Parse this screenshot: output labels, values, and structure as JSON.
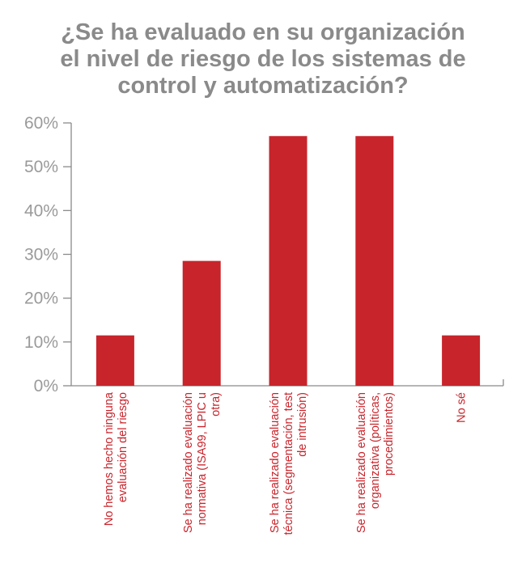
{
  "chart_data": {
    "type": "bar",
    "title_lines": [
      "¿Se ha evaluado en su organización",
      "el nivel de riesgo de los sistemas de",
      "control y automatización?"
    ],
    "categories": [
      [
        "No hemos hecho ninguna",
        "evaluación del riesgo"
      ],
      [
        "Se ha realizado evaluación",
        "normativa (ISA99, LPIC u",
        "otra)"
      ],
      [
        "Se ha realizado evaluación",
        "técnica (segmentación, test",
        "de intrusión)"
      ],
      [
        "Se ha realizado evaluación",
        "organizativa (políticas,",
        "procedimientos)"
      ],
      [
        "No sé"
      ]
    ],
    "values": [
      11.5,
      28.5,
      57,
      57,
      11.5
    ],
    "ylim": [
      0,
      60
    ],
    "yticks": [
      {
        "value": 0,
        "label": "0%"
      },
      {
        "value": 10,
        "label": "10%"
      },
      {
        "value": 20,
        "label": "20%"
      },
      {
        "value": 30,
        "label": "30%"
      },
      {
        "value": 40,
        "label": "40%"
      },
      {
        "value": 50,
        "label": "50%"
      },
      {
        "value": 60,
        "label": "60%"
      }
    ],
    "grid": false,
    "bar_color": "#c8242b",
    "axis_color": "#8a8a8a",
    "tick_label_color": "#9a9a9a",
    "title_color": "#8a8a8a"
  }
}
